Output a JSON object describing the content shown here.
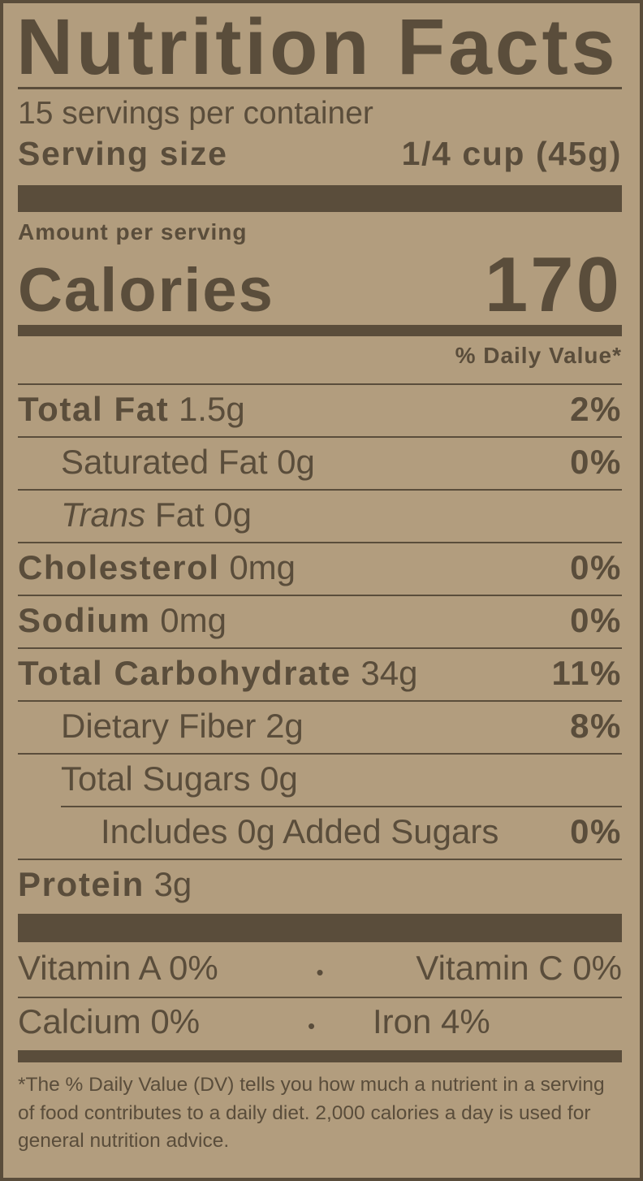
{
  "title": "Nutrition Facts",
  "servings_per_container": "15 servings per container",
  "serving_size": {
    "label": "Serving size",
    "value": "1/4 cup (45g)"
  },
  "amount_per_serving": "Amount per serving",
  "calories": {
    "label": "Calories",
    "value": "170"
  },
  "daily_value_header": "% Daily Value*",
  "nutrients": [
    {
      "label": "Total Fat",
      "amount": "1.5g",
      "dv": "2%"
    },
    {
      "label": "Saturated Fat",
      "amount": "0g",
      "dv": "0%"
    },
    {
      "label_italic": "Trans",
      "label": "Fat",
      "amount": "0g",
      "dv": ""
    },
    {
      "label": "Cholesterol",
      "amount": "0mg",
      "dv": "0%"
    },
    {
      "label": "Sodium",
      "amount": "0mg",
      "dv": "0%"
    },
    {
      "label": "Total Carbohydrate",
      "amount": "34g",
      "dv": "11%"
    },
    {
      "label": "Dietary Fiber",
      "amount": "2g",
      "dv": "8%"
    },
    {
      "label": "Total Sugars",
      "amount": "0g",
      "dv": ""
    },
    {
      "label": "Includes 0g Added Sugars",
      "amount": "",
      "dv": "0%"
    },
    {
      "label": "Protein",
      "amount": "3g",
      "dv": ""
    }
  ],
  "vitamins": [
    {
      "left": "Vitamin A 0%",
      "sep": "•",
      "right": "Vitamin C 0%"
    },
    {
      "left": "Calcium 0%",
      "sep": "•",
      "right": "Iron 4%"
    }
  ],
  "footnote": "*The % Daily Value (DV) tells you how much a nutrient in a serving of food contributes to a daily diet. 2,000 calories a day is used for general nutrition advice.",
  "colors": {
    "background": "#b29d7e",
    "ink": "#5a4d3b"
  }
}
